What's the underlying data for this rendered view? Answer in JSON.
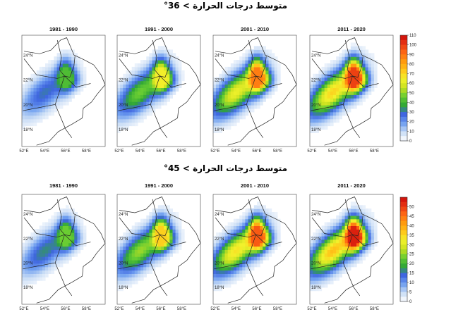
{
  "rows": [
    {
      "title": "متوسط درجات الحرارة > 36°",
      "colorbar": {
        "max": 110,
        "ticks": [
          "110",
          "100",
          "90",
          "80",
          "70",
          "60",
          "50",
          "40",
          "30",
          "20",
          "10",
          "0"
        ],
        "colors": [
          "#ffffff",
          "#c7dbf5",
          "#6f9ff0",
          "#3f66e0",
          "#2fa536",
          "#66cc33",
          "#c8e020",
          "#f2f22c",
          "#ffc61a",
          "#ff9b10",
          "#ff6a14",
          "#e83512",
          "#cc0a0a"
        ]
      },
      "panels": [
        {
          "period": "1981 - 1990",
          "intensity": 40
        },
        {
          "period": "1991 - 2000",
          "intensity": 62
        },
        {
          "period": "2001 - 2010",
          "intensity": 84
        },
        {
          "period": "2011 - 2020",
          "intensity": 94
        }
      ]
    },
    {
      "title": "متوسط درجات الحرارة > 45°",
      "colorbar": {
        "max": 55,
        "ticks": [
          "50",
          "45",
          "40",
          "35",
          "30",
          "25",
          "20",
          "15",
          "10",
          "5",
          "0"
        ],
        "colors": [
          "#ffffff",
          "#c7dbf5",
          "#6f9ff0",
          "#3f66e0",
          "#2fa536",
          "#66cc33",
          "#c8e020",
          "#f2f22c",
          "#ffc61a",
          "#ff9b10",
          "#ff6a14",
          "#e83512",
          "#cc0a0a"
        ]
      },
      "panels": [
        {
          "period": "1981 - 1990",
          "intensity": 22
        },
        {
          "period": "1991 - 2000",
          "intensity": 34
        },
        {
          "period": "2001 - 2010",
          "intensity": 45
        },
        {
          "period": "2011 - 2020",
          "intensity": 50
        }
      ]
    }
  ],
  "axes": {
    "lat_labels": [
      "24°N",
      "22°N",
      "20°N",
      "18°N"
    ],
    "lon_labels": [
      "52°E",
      "54°E",
      "56°E",
      "58°E"
    ]
  }
}
